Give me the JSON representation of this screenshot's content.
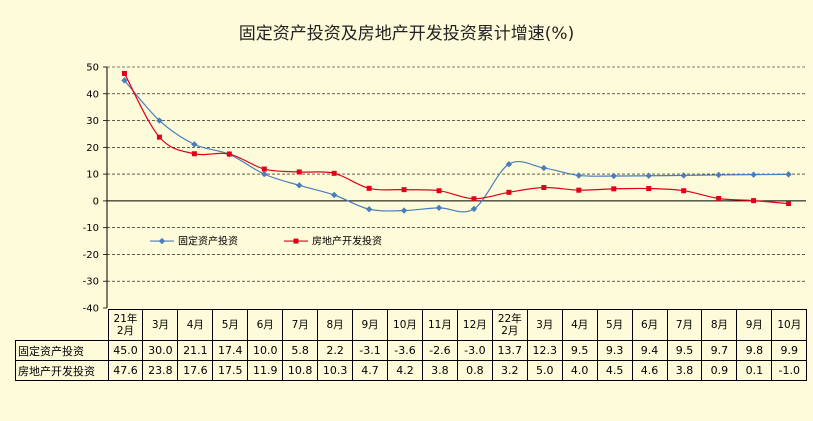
{
  "chart_data": {
    "type": "line",
    "title": "固定资产投资及房地产开发投资累计增速(%)",
    "categories": [
      "21年\n2月",
      "3月",
      "4月",
      "5月",
      "6月",
      "7月",
      "8月",
      "9月",
      "10月",
      "11月",
      "12月",
      "22年\n2月",
      "3月",
      "4月",
      "5月",
      "6月",
      "7月",
      "8月",
      "9月",
      "10月"
    ],
    "series": [
      {
        "name": "固定资产投资",
        "color": "#4a7ebb",
        "marker": "diamond",
        "values": [
          45.0,
          30.0,
          21.1,
          17.4,
          10.0,
          5.8,
          2.2,
          -3.1,
          -3.6,
          -2.6,
          -3.0,
          13.7,
          12.3,
          9.5,
          9.3,
          9.4,
          9.5,
          9.7,
          9.8,
          9.9
        ],
        "labels": [
          "45.0",
          "30.0",
          "21.1",
          "17.4",
          "10.0",
          "5.8",
          "2.2",
          "-3.1",
          "-3.6",
          "-2.6",
          "-3.0",
          "13.7",
          "12.3",
          "9.5",
          "9.3",
          "9.4",
          "9.5",
          "9.7",
          "9.8",
          "9.9"
        ]
      },
      {
        "name": "房地产开发投资",
        "color": "#e2001a",
        "marker": "square",
        "values": [
          47.6,
          23.8,
          17.6,
          17.5,
          11.9,
          10.8,
          10.3,
          4.7,
          4.2,
          3.8,
          0.8,
          3.2,
          5.0,
          4.0,
          4.5,
          4.6,
          3.8,
          0.9,
          0.1,
          -1.0
        ],
        "labels": [
          "47.6",
          "23.8",
          "17.6",
          "17.5",
          "11.9",
          "10.8",
          "10.3",
          "4.7",
          "4.2",
          "3.8",
          "0.8",
          "3.2",
          "5.0",
          "4.0",
          "4.5",
          "4.6",
          "3.8",
          "0.9",
          "0.1",
          "-1.0"
        ]
      }
    ],
    "ylim": [
      -40,
      50
    ],
    "yticks": [
      "50",
      "40",
      "30",
      "20",
      "10",
      "0",
      "-10",
      "-20",
      "-30",
      "-40"
    ],
    "grid": true,
    "legend": "lower-left",
    "data_table": true
  }
}
